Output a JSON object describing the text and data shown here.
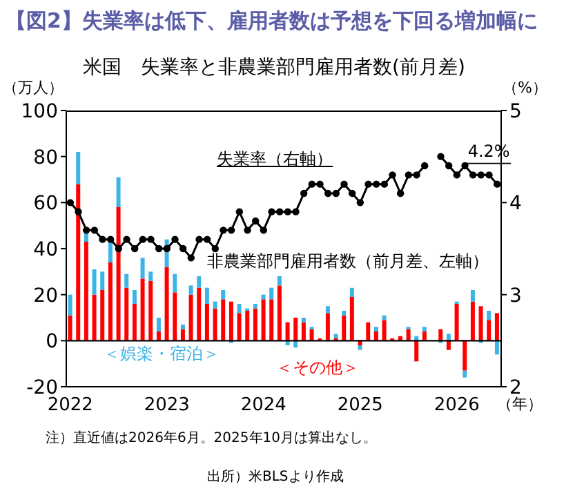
{
  "chart_data": {
    "type": "bar",
    "title": "【図2】失業率は低下、雇用者数は予想を下回る増加幅に",
    "subtitle": "米国　失業率と非農業部門雇用者数(前月差)",
    "ylabel": "（万人）",
    "y2label": "（%）",
    "xlabel": "（年）",
    "categories": [
      "2022",
      null,
      null,
      null,
      null,
      null,
      null,
      null,
      null,
      null,
      null,
      null,
      "2023",
      null,
      null,
      null,
      null,
      null,
      null,
      null,
      null,
      null,
      null,
      null,
      "2024",
      null,
      null,
      null,
      null,
      null,
      null,
      null,
      null,
      null,
      null,
      null,
      "2025",
      null,
      null,
      null,
      null,
      null,
      null,
      null,
      null,
      null,
      null,
      null,
      "2026",
      null,
      null,
      null,
      null,
      null
    ],
    "stacked": true,
    "series": [
      {
        "name": "＜その他＞",
        "color": "#ff0000",
        "values": [
          11,
          68,
          43,
          20,
          22,
          34,
          58,
          23,
          16,
          27,
          26,
          4,
          32,
          21,
          5,
          20,
          23,
          16,
          14,
          18,
          17,
          12,
          13,
          14,
          18,
          18,
          24,
          8,
          10,
          8,
          5,
          1,
          12,
          1,
          11,
          19,
          -2,
          8,
          4,
          9,
          1,
          2,
          5,
          -9,
          4,
          null,
          5,
          -4,
          16,
          -13,
          17,
          15,
          9,
          12
        ]
      },
      {
        "name": "＜娯楽・宿泊＞",
        "color": "#3cb4e6",
        "values": [
          9,
          14,
          4,
          11,
          8,
          9,
          13,
          6,
          6,
          9,
          4,
          6,
          12,
          8,
          2,
          4,
          5,
          7,
          3,
          4,
          -1,
          4,
          1,
          2,
          2,
          5,
          4,
          -2,
          -3,
          2,
          1,
          0,
          3,
          2,
          2,
          4,
          -2,
          0,
          2,
          2,
          0,
          0,
          1,
          2,
          2,
          null,
          -1,
          3,
          1,
          -3,
          5,
          -1,
          4,
          -6
        ]
      },
      {
        "name": "失業率（右軸）",
        "type": "line",
        "axis": "y2",
        "color": "#000000",
        "marker": "circle",
        "values": [
          4.0,
          3.9,
          3.7,
          3.7,
          3.6,
          3.6,
          3.5,
          3.6,
          3.5,
          3.6,
          3.6,
          3.5,
          3.5,
          3.6,
          3.5,
          3.4,
          3.6,
          3.6,
          3.5,
          3.7,
          3.7,
          3.9,
          3.7,
          3.8,
          3.7,
          3.9,
          3.9,
          3.9,
          3.9,
          4.1,
          4.2,
          4.2,
          4.1,
          4.1,
          4.2,
          4.1,
          4.0,
          4.2,
          4.2,
          4.2,
          4.3,
          4.1,
          4.3,
          4.3,
          4.4,
          null,
          4.5,
          4.4,
          4.3,
          4.4,
          4.3,
          4.3,
          4.3,
          4.2
        ],
        "value_labels": [
          null,
          null,
          null,
          null,
          null,
          null,
          null,
          null,
          null,
          null,
          null,
          null,
          null,
          null,
          null,
          null,
          null,
          null,
          null,
          null,
          null,
          null,
          null,
          null,
          null,
          null,
          null,
          null,
          null,
          null,
          null,
          null,
          null,
          null,
          null,
          null,
          null,
          null,
          null,
          null,
          null,
          null,
          null,
          null,
          null,
          null,
          null,
          null,
          null,
          null,
          null,
          null,
          null,
          "4.2%"
        ]
      }
    ],
    "ylim": [
      -20,
      100
    ],
    "yticks": [
      -20,
      0,
      20,
      40,
      60,
      80,
      100
    ],
    "y2lim": [
      2,
      5
    ],
    "y2ticks": [
      2,
      3,
      4,
      5
    ],
    "ref_lines": [
      {
        "axis": "y",
        "value": 0,
        "color": "#000000"
      }
    ],
    "legend": false,
    "annotations": [
      "非農業部門雇用者数（前月差、左軸）",
      "注）直近値は2026年6月。2025年10月は算出なし。",
      "出所）米BLSより作成"
    ]
  }
}
